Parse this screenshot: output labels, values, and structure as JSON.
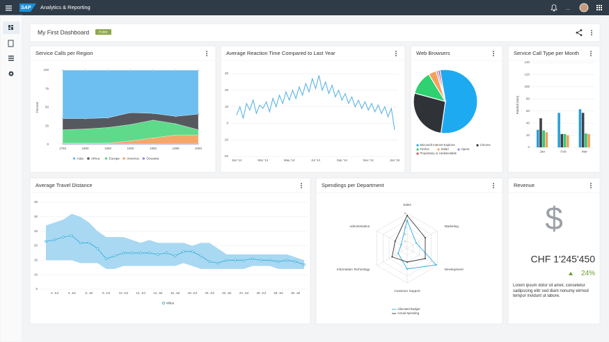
{
  "shell": {
    "logo": "SAP",
    "product": "Analytics & Reporting",
    "more": "..."
  },
  "dashboard": {
    "title": "My First Dashboard",
    "badge": "Public"
  },
  "chart_data": [
    {
      "type": "area",
      "stacked": true,
      "title": "Service Calls per Region",
      "y_label": "Percent",
      "categories": [
        "1750",
        "1800",
        "1850",
        "1900",
        "1950",
        "1999",
        "2050"
      ],
      "ylim": [
        0,
        100
      ],
      "yticks": [
        0,
        25,
        50,
        75,
        100
      ],
      "grid": true,
      "legend": "bottom",
      "series": [
        {
          "name": "Asia",
          "color": "#6cbff0",
          "values": [
            65,
            65,
            64,
            57,
            58,
            62,
            59
          ]
        },
        {
          "name": "Africa",
          "color": "#55595f",
          "values": [
            15,
            14,
            13,
            16,
            9,
            10,
            21
          ]
        },
        {
          "name": "Europe",
          "color": "#5fd98a",
          "values": [
            18,
            19,
            21,
            22,
            24,
            15,
            7
          ]
        },
        {
          "name": "America",
          "color": "#f5a76a",
          "values": [
            1,
            1,
            1,
            4,
            8,
            12,
            12
          ]
        },
        {
          "name": "Oceania",
          "color": "#8a8ee8",
          "values": [
            1,
            1,
            1,
            1,
            1,
            1,
            1
          ]
        }
      ]
    },
    {
      "type": "line",
      "title": "Average Reaction Time Compared to Last Year",
      "categories": [
        "Jan '14",
        null,
        null,
        null,
        null,
        null,
        null,
        null,
        "Mar '14",
        null,
        null,
        null,
        null,
        null,
        null,
        null,
        "May '14",
        null,
        null,
        null,
        null,
        null,
        null,
        null,
        "Jul '14",
        null,
        null,
        null,
        null,
        null,
        null,
        null,
        "Sep '14",
        null,
        null,
        null,
        null,
        null,
        null,
        null,
        "Nov '14",
        null,
        null,
        null,
        null,
        null,
        null,
        null,
        "Jan '15"
      ],
      "ylim": [
        -20,
        30
      ],
      "yticks": [
        -20,
        -10,
        0,
        10,
        20,
        30
      ],
      "grid": true,
      "series": [
        {
          "color": "#5ab4e6",
          "values": [
            5,
            10,
            3,
            12,
            8,
            14,
            6,
            11,
            9,
            13,
            7,
            15,
            10,
            17,
            12,
            19,
            14,
            20,
            15,
            22,
            17,
            24,
            19,
            27,
            21,
            29,
            20,
            25,
            18,
            23,
            16,
            20,
            14,
            18,
            12,
            16,
            10,
            14,
            9,
            13,
            8,
            12,
            7,
            11,
            6,
            10,
            4,
            9,
            -4
          ]
        }
      ]
    },
    {
      "type": "pie",
      "title": "Web Browsers",
      "categories": [
        "Microsoft Internet Explorer",
        "Chrome",
        "Firefox",
        "Safari",
        "Opera",
        "Proprietary or Undetectable"
      ],
      "values": [
        55,
        27,
        12,
        4,
        1,
        1
      ],
      "colors": [
        "#1eaaf1",
        "#2f3338",
        "#2fd171",
        "#f5a05a",
        "#8a8ee8",
        "#e84a5f"
      ],
      "legend": "bottom"
    },
    {
      "type": "bar",
      "title": "Service Call Type per Month",
      "y_label": "Rainfall (mm)",
      "categories": [
        "Jan",
        "Feb",
        "Mar"
      ],
      "ylim": [
        0,
        140
      ],
      "yticks": [
        0,
        20,
        40,
        60,
        80,
        100,
        120,
        140
      ],
      "grid": true,
      "series": [
        {
          "color": "#2a9fd6",
          "values": [
            29,
            57,
            63
          ]
        },
        {
          "color": "#3d4147",
          "values": [
            48,
            22,
            57
          ]
        },
        {
          "color": "#34c877",
          "values": [
            28,
            22,
            23
          ]
        },
        {
          "color": "#f5a05a",
          "values": [
            25,
            20,
            22
          ]
        }
      ]
    },
    {
      "type": "line",
      "title": "Average Travel Distance",
      "markers": true,
      "categories": [
        null,
        "2. Jul",
        null,
        "4. Jul",
        null,
        "6. Jul",
        null,
        "8. Jul",
        null,
        "10. Jul",
        null,
        "12. Jul",
        null,
        "14. Jul",
        null,
        "16. Jul",
        null,
        "18. Jul",
        null,
        "20. Jul",
        null,
        "22. Jul",
        null,
        "24. Jul",
        null,
        "26. Jul",
        null,
        "28. Jul",
        null,
        "30. Jul",
        null
      ],
      "ylim": [
        5,
        35
      ],
      "yticks": [
        5,
        10,
        15,
        20,
        25,
        30,
        35
      ],
      "grid": true,
      "legend": "bottom",
      "band": {
        "color": "#a9d8f2",
        "low": [
          15,
          15,
          15,
          15,
          14,
          14,
          14,
          12,
          12,
          13,
          13,
          13,
          13,
          13,
          13,
          13,
          14,
          13,
          12,
          12,
          12,
          12,
          12,
          12,
          13,
          13,
          13,
          12,
          12,
          12,
          12
        ],
        "high": [
          27,
          28,
          29,
          31,
          30,
          28,
          25,
          23,
          23,
          23,
          22,
          21,
          22,
          21,
          21,
          21,
          21,
          20,
          21,
          21,
          19,
          17,
          17,
          17,
          17,
          17,
          17,
          17,
          17,
          16,
          15
        ]
      },
      "series": [
        {
          "name": "Miles",
          "color": "#2aa9d8",
          "values": [
            21.5,
            22,
            23,
            23.5,
            21,
            21,
            19,
            15.5,
            16.5,
            17.5,
            17.5,
            17.5,
            17.5,
            17,
            17.5,
            16.5,
            18,
            18,
            16.5,
            14.5,
            14,
            15,
            15,
            15,
            15.5,
            15,
            15,
            14.5,
            15,
            14.5,
            13.5
          ]
        }
      ]
    },
    {
      "type": "radar",
      "title": "Spendings per Department",
      "categories": [
        "Sales",
        "Marketing",
        "Development",
        "Customer Support",
        "Information Technology",
        "Administration"
      ],
      "rlim": [
        0,
        5
      ],
      "rticks": [
        1,
        2,
        3,
        4,
        5
      ],
      "legend": "bottom",
      "series": [
        {
          "name": "Allocated Budget",
          "color": "#2aa9e0",
          "values": [
            4,
            1.5,
            4.8,
            3,
            1.5,
            1
          ]
        },
        {
          "name": "Actual Spending",
          "color": "#333333",
          "values": [
            4.7,
            3,
            3,
            2,
            2.5,
            2
          ]
        }
      ]
    }
  ],
  "revenue": {
    "title": "Revenue",
    "icon": "$",
    "amount": "CHF 1'245'450",
    "change": "24%",
    "text": "Lorem ipsum dolor sit amet, consetetur sadipscing elitr sed diam nonumy eirmod tempor invidunt ut labore."
  }
}
